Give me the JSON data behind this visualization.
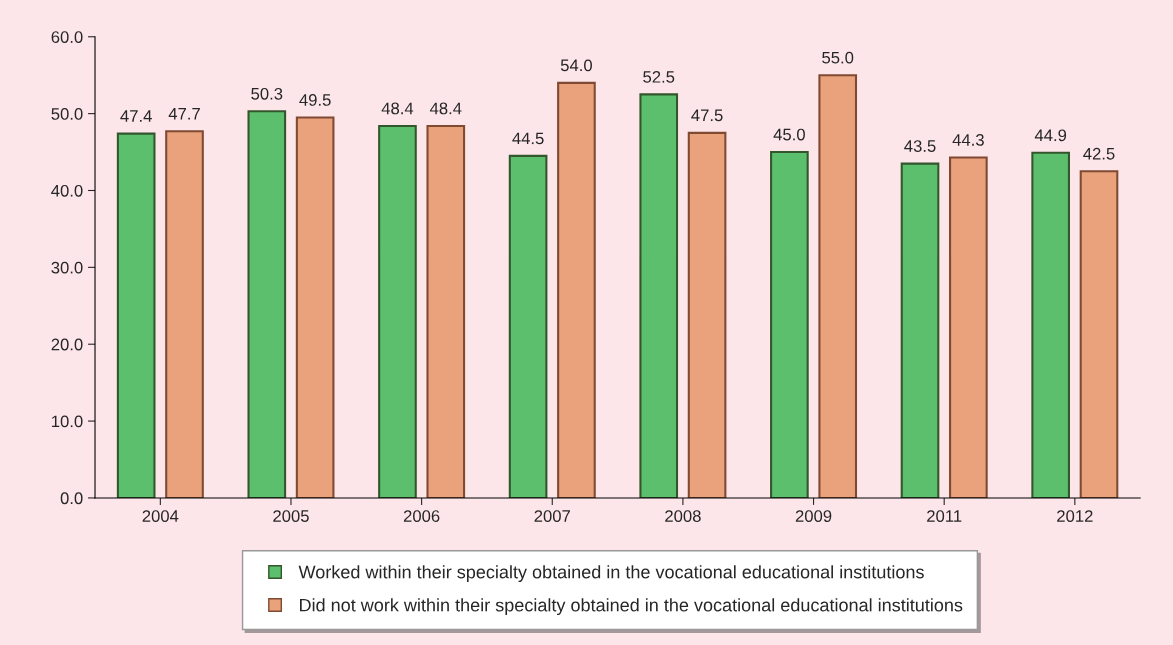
{
  "chart_data": {
    "type": "bar",
    "categories": [
      "2004",
      "2005",
      "2006",
      "2007",
      "2008",
      "2009",
      "2011",
      "2012"
    ],
    "series": [
      {
        "name": "Worked within their specialty obtained in the vocational educational institutions",
        "color": "#5cbf6e",
        "values": [
          47.4,
          50.3,
          48.4,
          44.5,
          52.5,
          45.0,
          43.5,
          44.9
        ],
        "value_labels": [
          "47.4",
          "50.3",
          "48.4",
          "44.5",
          "52.5",
          "45.0",
          "43.5",
          "44.9"
        ]
      },
      {
        "name": "Did not work within their specialty obtained in the vocational educational institutions",
        "color": "#e9a27c",
        "values": [
          47.7,
          49.5,
          48.4,
          54.0,
          47.5,
          55.0,
          44.3,
          42.5
        ],
        "value_labels": [
          "47.7",
          "49.5",
          "48.4",
          "54.0",
          "47.5",
          "55.0",
          "44.3",
          "42.5"
        ]
      }
    ],
    "ylim": [
      0,
      60
    ],
    "yticks": [
      {
        "value": 0,
        "label": "0.0"
      },
      {
        "value": 10,
        "label": "10.0"
      },
      {
        "value": 20,
        "label": "20.0"
      },
      {
        "value": 30,
        "label": "30.0"
      },
      {
        "value": 40,
        "label": "40.0"
      },
      {
        "value": 50,
        "label": "50.0"
      },
      {
        "value": 60,
        "label": "60.0"
      }
    ],
    "grid": false,
    "legend": "bottom"
  }
}
